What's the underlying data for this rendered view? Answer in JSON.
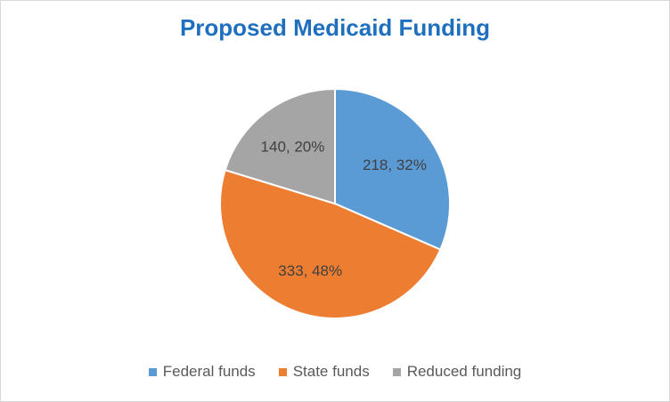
{
  "chart_data": {
    "type": "pie",
    "title": "Proposed Medicaid Funding",
    "categories": [
      "Federal funds",
      "State funds",
      "Reduced funding"
    ],
    "values": [
      218,
      333,
      140
    ],
    "data_labels": [
      "218, 32%",
      "333, 48%",
      "140, 20%"
    ],
    "colors": [
      "#5b9bd5",
      "#ed7d31",
      "#a5a5a5"
    ],
    "legend_position": "bottom",
    "start_direction": "top, clockwise"
  }
}
